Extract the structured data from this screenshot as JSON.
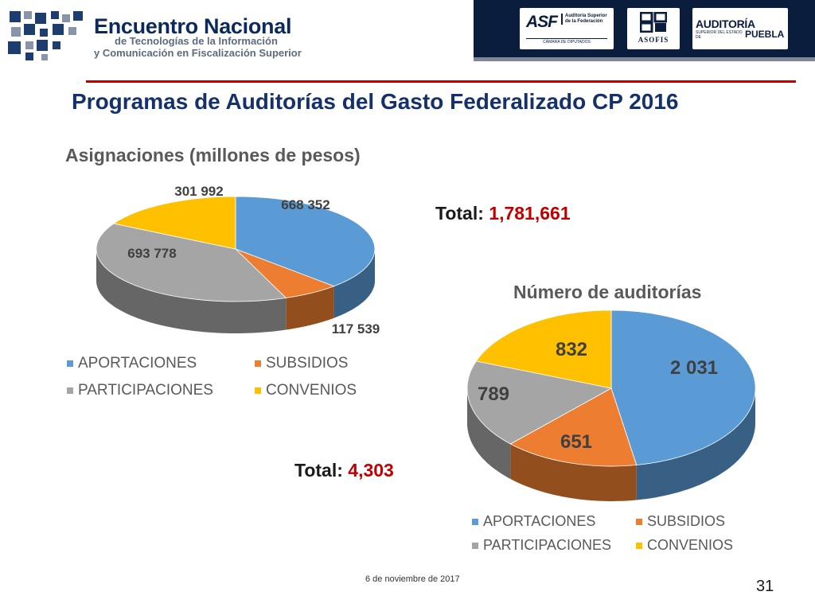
{
  "header": {
    "event_title": "Encuentro Nacional",
    "event_subtitle_line1": "de Tecnologías de la Información",
    "event_subtitle_line2": "y Comunicación en Fiscalización Superior",
    "logo_icon": "pixel-grid-logo",
    "sponsors": {
      "asf": {
        "name": "ASF",
        "desc": "Auditoría Superior de la Federación",
        "foot": "CÁMARA DE DIPUTADOS"
      },
      "asofis": {
        "name": "ASOFIS"
      },
      "puebla": {
        "name": "AUDITORÍA",
        "sub": "SUPERIOR DEL ESTADO DE",
        "city": "PUEBLA"
      }
    }
  },
  "slide_title": "Programas de Auditorías del Gasto Federalizado CP 2016",
  "colors": {
    "APORTACIONES": "#5b9bd5",
    "SUBSIDIOS": "#ed7d31",
    "PARTICIPACIONES": "#a5a5a5",
    "CONVENIOS": "#ffc000",
    "title_rule": "#c00000",
    "total_value": "#c00000"
  },
  "chart_data": [
    {
      "type": "pie",
      "style": "3d",
      "title": "Asignaciones (millones de pesos)",
      "categories": [
        "APORTACIONES",
        "SUBSIDIOS",
        "PARTICIPACIONES",
        "CONVENIOS"
      ],
      "values": [
        668352,
        117539,
        693778,
        301992
      ],
      "data_labels": [
        "668 352",
        "117 539",
        "693 778",
        "301 992"
      ],
      "legend_placement": "bottom",
      "total_label": "Total:",
      "total_value": "1,781,661"
    },
    {
      "type": "pie",
      "style": "3d",
      "title": "Número de auditorías",
      "categories": [
        "APORTACIONES",
        "SUBSIDIOS",
        "PARTICIPACIONES",
        "CONVENIOS"
      ],
      "values": [
        2031,
        651,
        789,
        832
      ],
      "data_labels": [
        "2 031",
        "651",
        "789",
        "832"
      ],
      "legend_placement": "bottom",
      "total_label": "Total:",
      "total_value": "4,303"
    }
  ],
  "footer": {
    "date": "6 de noviembre de 2017",
    "page_number": "31"
  }
}
